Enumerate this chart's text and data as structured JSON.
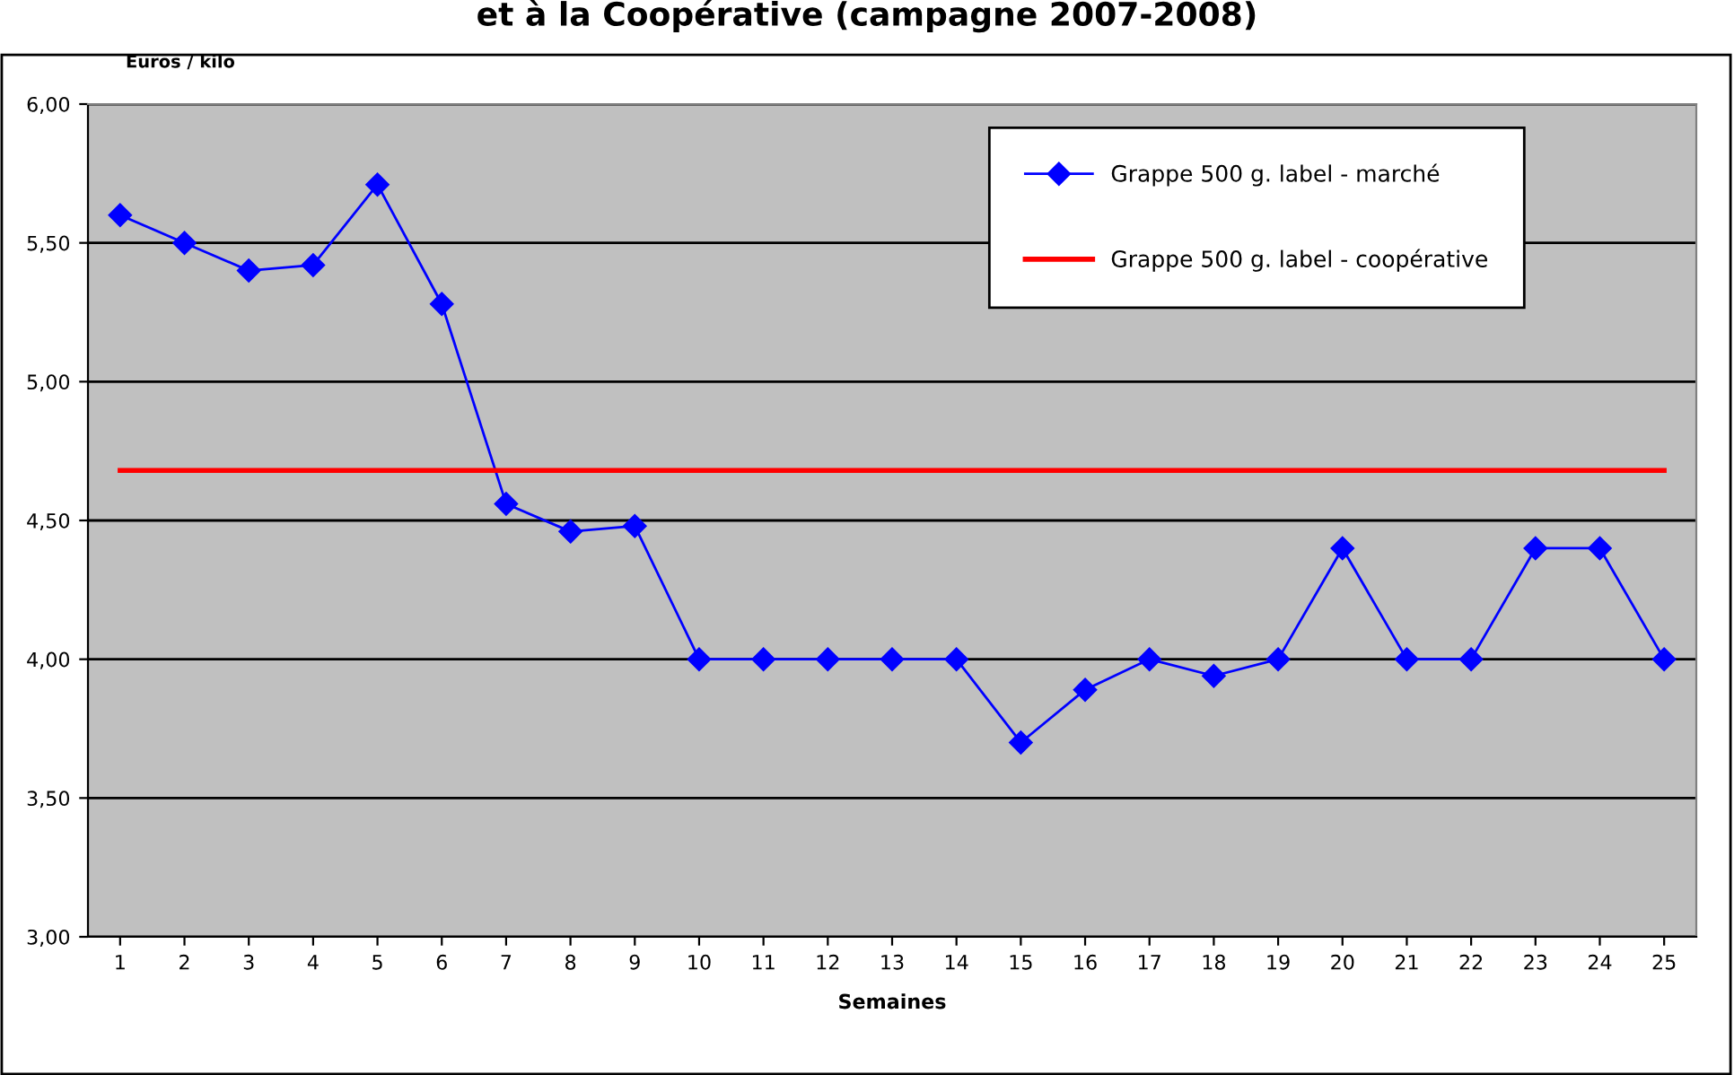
{
  "chart_data": {
    "type": "line",
    "title": "et à la Coopérative (campagne 2007-2008)",
    "ylabel": "Euros / kilo",
    "xlabel": "Semaines",
    "categories": [
      "1",
      "2",
      "3",
      "4",
      "5",
      "6",
      "7",
      "8",
      "9",
      "10",
      "11",
      "12",
      "13",
      "14",
      "15",
      "16",
      "17",
      "18",
      "19",
      "20",
      "21",
      "22",
      "23",
      "24",
      "25"
    ],
    "series": [
      {
        "name": "Grappe 500 g. label - marché",
        "color": "#0000ff",
        "marker": "diamond",
        "values": [
          5.6,
          5.5,
          5.4,
          5.42,
          5.71,
          5.28,
          4.56,
          4.46,
          4.48,
          4.0,
          4.0,
          4.0,
          4.0,
          4.0,
          3.7,
          3.89,
          4.0,
          3.94,
          4.0,
          4.4,
          4.0,
          4.0,
          4.4,
          4.4,
          4.0
        ]
      },
      {
        "name": "Grappe 500 g. label - coopérative",
        "color": "#ff0000",
        "marker": "none",
        "values": [
          4.68,
          4.68,
          4.68,
          4.68,
          4.68,
          4.68,
          4.68,
          4.68,
          4.68,
          4.68,
          4.68,
          4.68,
          4.68,
          4.68,
          4.68,
          4.68,
          4.68,
          4.68,
          4.68,
          4.68,
          4.68,
          4.68,
          4.68,
          4.68,
          4.68
        ]
      }
    ],
    "ylim": [
      3.0,
      6.0
    ],
    "yticks": [
      {
        "value": 3.0,
        "label": "3,00"
      },
      {
        "value": 3.5,
        "label": "3,50"
      },
      {
        "value": 4.0,
        "label": "4,00"
      },
      {
        "value": 4.5,
        "label": "4,50"
      },
      {
        "value": 5.0,
        "label": "5,00"
      },
      {
        "value": 5.5,
        "label": "5,50"
      },
      {
        "value": 6.0,
        "label": "6,00"
      }
    ],
    "grid": "y",
    "legend": "top right"
  }
}
